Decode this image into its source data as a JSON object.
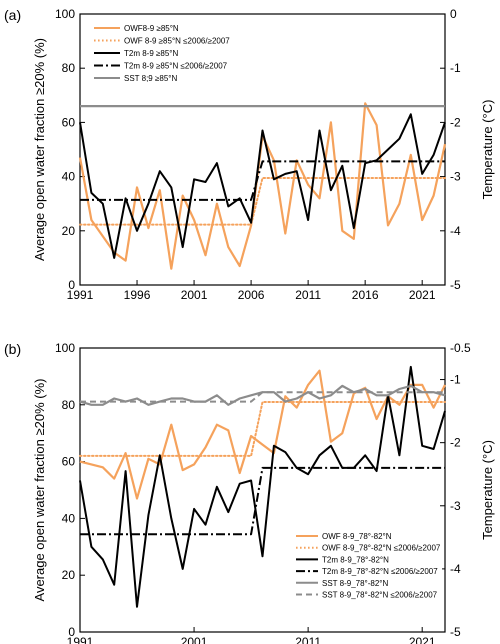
{
  "chart_data": [
    {
      "type": "line",
      "panel_label": "(a)",
      "ylabel": "Average open water fraction ≥20%  (%)",
      "y2label": "Temperature  (°C)",
      "xlim": [
        1991,
        2023
      ],
      "ylim": [
        0,
        100
      ],
      "y2lim": [
        -5,
        0
      ],
      "xticks": [
        1991,
        1996,
        2001,
        2006,
        2011,
        2016,
        2021
      ],
      "yticks": [
        0,
        20,
        40,
        60,
        80,
        100
      ],
      "y2ticks": [
        0,
        -1,
        -2,
        -3,
        -4,
        -5
      ],
      "x": [
        1991,
        1992,
        1993,
        1994,
        1995,
        1996,
        1997,
        1998,
        1999,
        2000,
        2001,
        2002,
        2003,
        2004,
        2005,
        2006,
        2007,
        2008,
        2009,
        2010,
        2011,
        2012,
        2013,
        2014,
        2015,
        2016,
        2017,
        2018,
        2019,
        2020,
        2021,
        2022,
        2023
      ],
      "legend_position": "top-left",
      "series": [
        {
          "name": "OWF8-9 ≥85°N",
          "axis": "left",
          "color": "#F5A25C",
          "style": "solid",
          "values": [
            47,
            24,
            18,
            12,
            9,
            36,
            21,
            35,
            6,
            33,
            24,
            11,
            30,
            14,
            7,
            22,
            55,
            46,
            19,
            46,
            37,
            32,
            60,
            20,
            17,
            67,
            59,
            22,
            30,
            48,
            24,
            33,
            52
          ]
        },
        {
          "name": "OWF 8-9 ≥85°N ≤2006/≥2007",
          "axis": "left",
          "color": "#F5A25C",
          "style": "dotted",
          "segments": [
            {
              "x": [
                1991,
                2006
              ],
              "y": 22.3
            },
            {
              "x": [
                2007,
                2023
              ],
              "y": 39.5
            }
          ]
        },
        {
          "name": "T2m 8-9 ≥85°N",
          "axis": "right",
          "color": "#000000",
          "style": "solid",
          "values": [
            -2.0,
            -3.3,
            -3.5,
            -4.5,
            -3.4,
            -4.0,
            -3.5,
            -2.9,
            -3.2,
            -4.3,
            -3.05,
            -3.1,
            -2.75,
            -3.55,
            -3.4,
            -3.85,
            -2.15,
            -3.05,
            -2.95,
            -2.9,
            -3.8,
            -2.15,
            -3.25,
            -2.8,
            -3.95,
            -2.75,
            -2.7,
            -2.5,
            -2.3,
            -1.85,
            -2.95,
            -2.6,
            -2.0
          ]
        },
        {
          "name": "T2m 8-9 ≥85°N ≤2006/≥2007",
          "axis": "right",
          "color": "#000000",
          "style": "dashdot",
          "segments": [
            {
              "x": [
                1991,
                2006
              ],
              "y": -3.43
            },
            {
              "x": [
                2007,
                2023
              ],
              "y": -2.72
            }
          ]
        },
        {
          "name": "SST 8;9 ≥85°N",
          "axis": "right",
          "color": "#8C8C8C",
          "style": "solid",
          "values": [
            -1.7,
            -1.7,
            -1.7,
            -1.7,
            -1.7,
            -1.7,
            -1.7,
            -1.7,
            -1.7,
            -1.7,
            -1.7,
            -1.7,
            -1.7,
            -1.7,
            -1.7,
            -1.7,
            -1.7,
            -1.7,
            -1.7,
            -1.7,
            -1.7,
            -1.7,
            -1.7,
            -1.7,
            -1.7,
            -1.7,
            -1.7,
            -1.7,
            -1.7,
            -1.7,
            -1.7,
            -1.7,
            -1.7
          ]
        }
      ]
    },
    {
      "type": "line",
      "panel_label": "(b)",
      "ylabel": "Average open water fraction ≥20%  (%)",
      "y2label": "Temperature  (°C)",
      "xlim": [
        1991,
        2023
      ],
      "ylim": [
        0,
        100
      ],
      "y2lim": [
        -5,
        -0.5
      ],
      "xticks": [
        1991,
        2001,
        2011,
        2021
      ],
      "yticks": [
        0,
        20,
        40,
        60,
        80,
        100
      ],
      "y2ticks": [
        -0.5,
        -1,
        -2,
        -3,
        -4,
        -5
      ],
      "x": [
        1991,
        1992,
        1993,
        1994,
        1995,
        1996,
        1997,
        1998,
        1999,
        2000,
        2001,
        2002,
        2003,
        2004,
        2005,
        2006,
        2007,
        2008,
        2009,
        2010,
        2011,
        2012,
        2013,
        2014,
        2015,
        2016,
        2017,
        2018,
        2019,
        2020,
        2021,
        2022,
        2023
      ],
      "legend_position": "bottom-right",
      "series": [
        {
          "name": "OWF 8-9_78°-82°N",
          "axis": "left",
          "color": "#F5A25C",
          "style": "solid",
          "values": [
            60,
            59,
            58,
            54,
            63,
            47,
            61,
            59,
            73,
            57,
            59,
            65,
            73,
            71,
            56,
            69,
            66,
            63,
            83,
            79,
            87,
            92,
            67,
            70,
            84,
            86,
            75,
            83,
            80,
            87,
            87,
            79,
            87
          ]
        },
        {
          "name": "OWF 8-9_78°-82°N ≤2006/≥2007",
          "axis": "left",
          "color": "#F5A25C",
          "style": "dotted",
          "segments": [
            {
              "x": [
                1991,
                2006
              ],
              "y": 62
            },
            {
              "x": [
                2007,
                2023
              ],
              "y": 81
            }
          ]
        },
        {
          "name": "T2m 8-9_78°-82°N",
          "axis": "right",
          "color": "#000000",
          "style": "solid",
          "values": [
            -2.6,
            -3.65,
            -3.85,
            -4.25,
            -2.45,
            -4.6,
            -3.15,
            -2.2,
            -3.2,
            -4.0,
            -3.05,
            -3.3,
            -2.7,
            -3.1,
            -2.65,
            -2.6,
            -3.8,
            -2.05,
            -2.15,
            -2.4,
            -2.5,
            -2.2,
            -2.05,
            -2.4,
            -2.4,
            -2.2,
            -2.45,
            -1.25,
            -2.2,
            -0.8,
            -2.05,
            -2.1,
            -1.5
          ]
        },
        {
          "name": "T2m 8-9_78°-82°N ≤2006/≥2007",
          "axis": "right",
          "color": "#000000",
          "style": "dashdot",
          "segments": [
            {
              "x": [
                1991,
                2006
              ],
              "y": -3.45
            },
            {
              "x": [
                2007,
                2023
              ],
              "y": -2.4
            }
          ]
        },
        {
          "name": "SST 8-9_78°-82°N",
          "axis": "right",
          "color": "#8C8C8C",
          "style": "solid",
          "values": [
            -1.35,
            -1.4,
            -1.4,
            -1.3,
            -1.35,
            -1.3,
            -1.4,
            -1.35,
            -1.3,
            -1.3,
            -1.35,
            -1.35,
            -1.25,
            -1.4,
            -1.3,
            -1.25,
            -1.2,
            -1.2,
            -1.35,
            -1.3,
            -1.2,
            -1.3,
            -1.25,
            -1.1,
            -1.2,
            -1.15,
            -1.25,
            -1.25,
            -1.15,
            -1.1,
            -1.2,
            -1.2,
            -1.25
          ]
        },
        {
          "name": "SST 8-9_78°-82°N ≤2006/≥2007",
          "axis": "right",
          "color": "#8C8C8C",
          "style": "dashed",
          "segments": [
            {
              "x": [
                1991,
                2006
              ],
              "y": -1.35
            },
            {
              "x": [
                2007,
                2023
              ],
              "y": -1.2
            }
          ]
        }
      ]
    }
  ]
}
